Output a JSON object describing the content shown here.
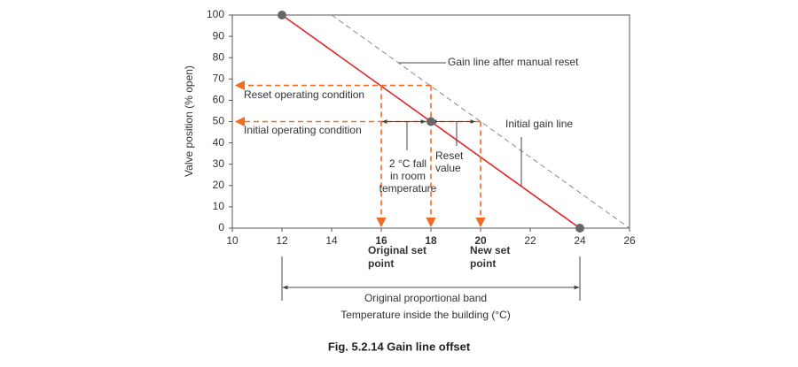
{
  "chart_data": {
    "type": "line",
    "title": "Fig. 5.2.14 Gain line offset",
    "xlabel": "Temperature inside the building (°C)",
    "ylabel": "Valve position (% open)",
    "xlim": [
      10,
      26
    ],
    "ylim": [
      0,
      100
    ],
    "xticks": [
      10,
      12,
      14,
      16,
      18,
      20,
      22,
      24,
      26
    ],
    "yticks": [
      0,
      10,
      20,
      30,
      40,
      50,
      60,
      70,
      80,
      90,
      100
    ],
    "series": [
      {
        "name": "Initial gain line",
        "color": "#e0262b",
        "dashed": false,
        "x": [
          12,
          24
        ],
        "values": [
          100,
          0
        ]
      },
      {
        "name": "Gain line after manual reset",
        "color": "#8a8a8a",
        "dashed": true,
        "x": [
          14,
          26
        ],
        "values": [
          100,
          0
        ]
      }
    ],
    "points": {
      "color": "#666666",
      "x": [
        12,
        18,
        24
      ],
      "values": [
        100,
        50,
        0
      ]
    },
    "guide_color": "#f26b21",
    "guides": [
      {
        "label": [
          "Reset operating condition"
        ],
        "x": [
          18,
          10
        ],
        "y": [
          67,
          67
        ]
      },
      {
        "label": [
          "Initial operating condition"
        ],
        "x": [
          20,
          10
        ],
        "y": [
          50,
          50
        ]
      },
      {
        "x": [
          16,
          16
        ],
        "y": [
          67,
          0
        ]
      },
      {
        "label": [
          "Original set",
          "point"
        ],
        "x": [
          18,
          18
        ],
        "y": [
          67,
          0
        ]
      },
      {
        "label": [
          "New set",
          "point"
        ],
        "x": [
          20,
          20
        ],
        "y": [
          50,
          0
        ]
      }
    ],
    "spans": [
      {
        "label": [
          "2 °C fall",
          "in room",
          "temperature"
        ],
        "x": [
          16,
          18
        ],
        "y": [
          50,
          50
        ]
      },
      {
        "label": [
          "Reset",
          "value"
        ],
        "x": [
          18,
          20
        ],
        "y": [
          50,
          50
        ]
      },
      {
        "label": [
          "Original proportional band"
        ],
        "x": [
          12,
          24
        ]
      }
    ]
  }
}
